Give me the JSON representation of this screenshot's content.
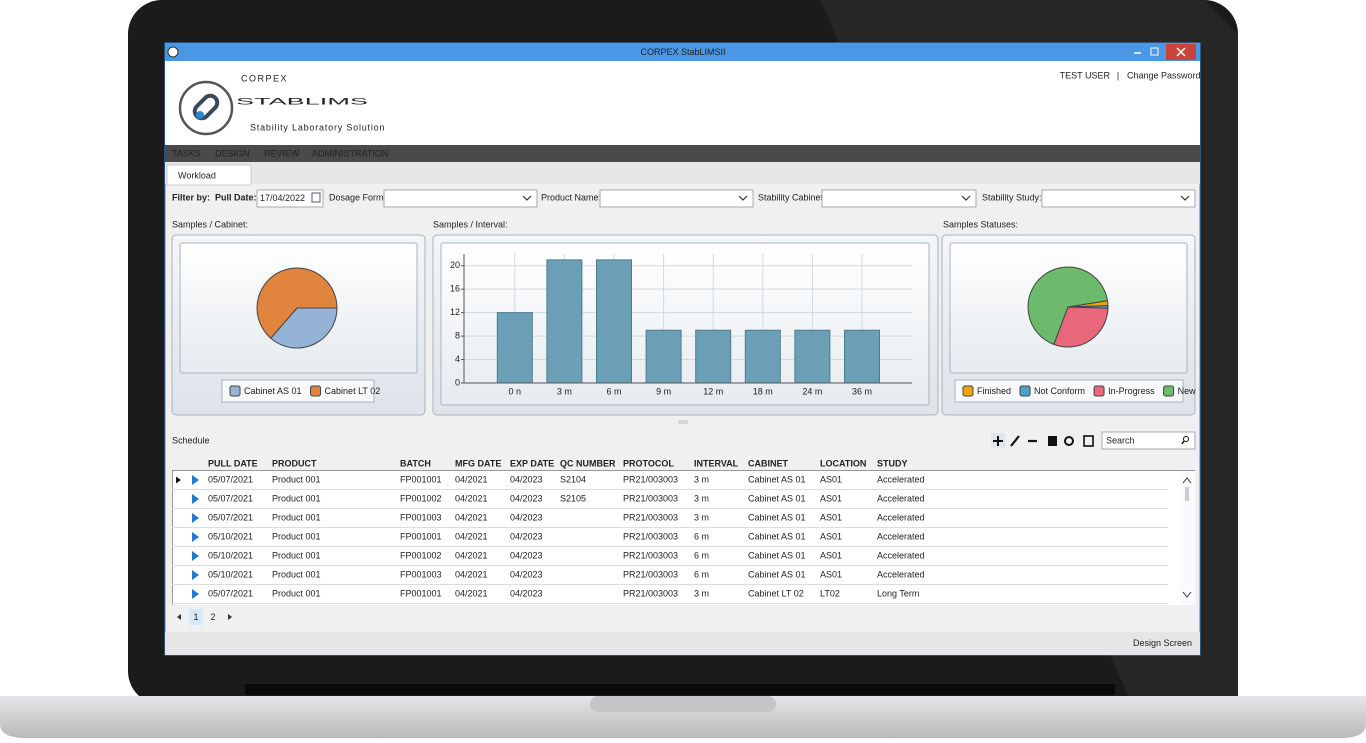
{
  "window": {
    "title": "CORPEX StabLIMSII"
  },
  "header": {
    "brand_small": "CORPEX",
    "brand": "STABLIMS",
    "tagline": "Stability Laboratory Solution",
    "user": "TEST USER",
    "separator": "|",
    "change_password": "Change Password"
  },
  "menu": [
    "TASKS",
    "DESIGN",
    "REVIEW",
    "ADMINISTRATION"
  ],
  "tab": "Workload",
  "filters": {
    "label": "Filter by:",
    "pull_date_label": "Pull Date:",
    "pull_date": "17/04/2022",
    "dosage_form_label": "Dosage Form:",
    "product_name_label": "Product Name:",
    "stability_cabinet_label": "Stability Cabinet:",
    "stability_study_label": "Stability Study:"
  },
  "chart_data": [
    {
      "type": "pie",
      "title": "Samples / Cabinet:",
      "categories": [
        "Cabinet AS 01",
        "Cabinet LT 02"
      ],
      "values": [
        36,
        63
      ],
      "colors": [
        "#95b3d7",
        "#e0843e"
      ],
      "legend": true
    },
    {
      "type": "bar",
      "title": "Samples / Interval:",
      "categories": [
        "0 n",
        "3 m",
        "6 m",
        "9 m",
        "12 m",
        "18 m",
        "24 m",
        "36 m"
      ],
      "values": [
        12,
        21,
        21,
        9,
        9,
        9,
        9,
        9
      ],
      "color": "#6a9fb6",
      "ylim": [
        0,
        22
      ],
      "yticks": [
        0,
        4,
        8,
        12,
        16,
        20
      ],
      "grid": true
    },
    {
      "type": "pie",
      "title": "Samples Statuses:",
      "categories": [
        "Finished",
        "Not Conform",
        "In-Progress",
        "New"
      ],
      "values": [
        2,
        1,
        30,
        66
      ],
      "colors": [
        "#f0a30a",
        "#4aa3c8",
        "#e8677a",
        "#6cba6c"
      ],
      "legend": true
    }
  ],
  "schedule": {
    "title": "Schedule",
    "search_placeholder": "Search",
    "columns": [
      "PULL DATE",
      "PRODUCT",
      "BATCH",
      "MFG DATE",
      "EXP DATE",
      "QC NUMBER",
      "PROTOCOL",
      "INTERVAL",
      "CABINET",
      "LOCATION",
      "STUDY"
    ],
    "rows": [
      [
        "05/07/2021",
        "Product 001",
        "FP001001",
        "04/2021",
        "04/2023",
        "S2104",
        "PR21/003003",
        "3 m",
        "Cabinet AS 01",
        "AS01",
        "Accelerated"
      ],
      [
        "05/07/2021",
        "Product 001",
        "FP001002",
        "04/2021",
        "04/2023",
        "S2105",
        "PR21/003003",
        "3 m",
        "Cabinet AS 01",
        "AS01",
        "Accelerated"
      ],
      [
        "05/07/2021",
        "Product 001",
        "FP001003",
        "04/2021",
        "04/2023",
        null,
        "PR21/003003",
        "3 m",
        "Cabinet AS 01",
        "AS01",
        "Accelerated"
      ],
      [
        "05/10/2021",
        "Product 001",
        "FP001001",
        "04/2021",
        "04/2023",
        null,
        "PR21/003003",
        "6 m",
        "Cabinet AS 01",
        "AS01",
        "Accelerated"
      ],
      [
        "05/10/2021",
        "Product 001",
        "FP001002",
        "04/2021",
        "04/2023",
        null,
        "PR21/003003",
        "6 m",
        "Cabinet AS 01",
        "AS01",
        "Accelerated"
      ],
      [
        "05/10/2021",
        "Product 001",
        "FP001003",
        "04/2021",
        "04/2023",
        null,
        "PR21/003003",
        "6 m",
        "Cabinet AS 01",
        "AS01",
        "Accelerated"
      ],
      [
        "05/07/2021",
        "Product 001",
        "FP001001",
        "04/2021",
        "04/2023",
        null,
        "PR21/003003",
        "3 m",
        "Cabinet LT 02",
        "LT02",
        "Long Term"
      ]
    ]
  },
  "pager": {
    "pages": [
      1,
      2
    ]
  },
  "footer": {
    "link": "Design Screen"
  }
}
